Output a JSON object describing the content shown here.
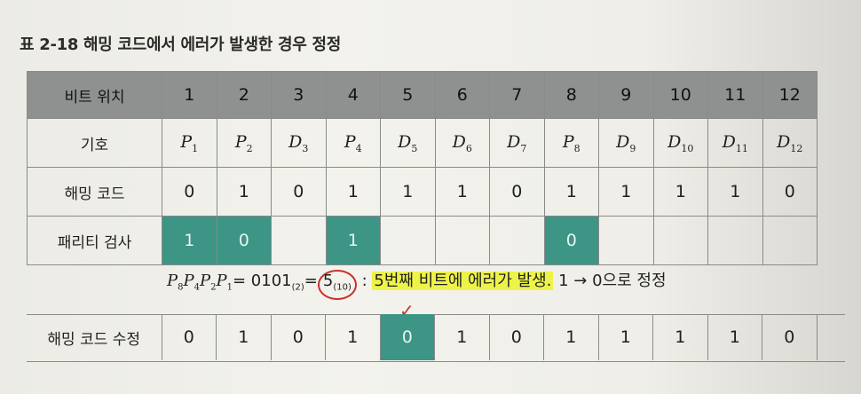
{
  "caption": "표 2-18 해밍 코드에서 에러가 발생한 경우 정정",
  "header": {
    "label": "비트 위치",
    "positions": [
      "1",
      "2",
      "3",
      "4",
      "5",
      "6",
      "7",
      "8",
      "9",
      "10",
      "11",
      "12"
    ]
  },
  "rows": {
    "symbol": {
      "label": "기호",
      "cells": [
        {
          "base": "P",
          "sub": "1"
        },
        {
          "base": "P",
          "sub": "2"
        },
        {
          "base": "D",
          "sub": "3"
        },
        {
          "base": "P",
          "sub": "4"
        },
        {
          "base": "D",
          "sub": "5"
        },
        {
          "base": "D",
          "sub": "6"
        },
        {
          "base": "D",
          "sub": "7"
        },
        {
          "base": "P",
          "sub": "8"
        },
        {
          "base": "D",
          "sub": "9"
        },
        {
          "base": "D",
          "sub": "10"
        },
        {
          "base": "D",
          "sub": "11"
        },
        {
          "base": "D",
          "sub": "12"
        }
      ]
    },
    "hamming": {
      "label": "해밍 코드",
      "values": [
        "0",
        "1",
        "0",
        "1",
        "1",
        "1",
        "0",
        "1",
        "1",
        "1",
        "1",
        "0"
      ]
    },
    "parity": {
      "label": "패리티 검사",
      "values": [
        "1",
        "0",
        "",
        "1",
        "",
        "",
        "",
        "0",
        "",
        "",
        "",
        ""
      ],
      "highlighted": [
        1,
        2,
        4,
        8
      ]
    }
  },
  "formula": {
    "lhs": [
      "P",
      "8",
      "P",
      "4",
      "P",
      "2",
      "P",
      "1"
    ],
    "eq1": "= 0101",
    "base2": "(2)",
    "eq2": "=",
    "result": "5",
    "base10": "(10)",
    "colon": ":",
    "highlight": "5번째 비트에 에러가 발생.",
    "note": "1 → 0으로 정정"
  },
  "fix": {
    "label": "해밍 코드 수정",
    "values": [
      "0",
      "1",
      "0",
      "1",
      "0",
      "1",
      "0",
      "1",
      "1",
      "1",
      "1",
      "0"
    ],
    "highlighted": [
      5
    ],
    "check_mark": "✓"
  },
  "colors": {
    "teal": "#3c9585",
    "header_gray": "#8f9191",
    "highlight_yellow": "#eef34a",
    "circle_red": "#c8322f"
  }
}
